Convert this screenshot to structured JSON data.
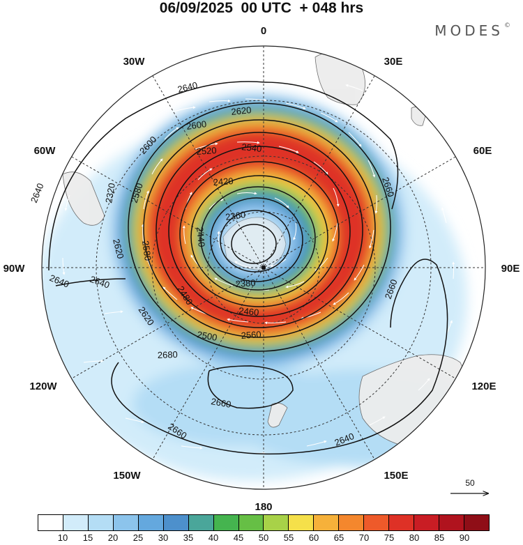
{
  "title": "06/09/2025  00 UTC  + 048 hrs",
  "brand": "MODES",
  "brand_mark": "©",
  "longitude_labels": {
    "lon0": "0",
    "lon30e": "30E",
    "lon60e": "60E",
    "lon90e": "90E",
    "lon120e": "120E",
    "lon150e": "150E",
    "lon180": "180",
    "lon150w": "150W",
    "lon120w": "120W",
    "lon90w": "90W",
    "lon60w": "60W",
    "lon30w": "30W"
  },
  "contour_labels": [
    "2640",
    "2620",
    "2600",
    "2540",
    "2520",
    "2580",
    "2600",
    "2420",
    "2320",
    "2640",
    "2620",
    "2580",
    "2360",
    "2440",
    "2380",
    "2480",
    "2460",
    "2500",
    "2560",
    "2620",
    "2640",
    "2640",
    "2660",
    "2660",
    "2680",
    "2660",
    "2660",
    "2640"
  ],
  "reference_vector": {
    "label": "50"
  },
  "colorbar": {
    "colors": [
      "#ffffff",
      "#d2ecfa",
      "#b4ddf5",
      "#8cc4ec",
      "#64a8de",
      "#4d90cc",
      "#4aa69a",
      "#45b44f",
      "#66bf45",
      "#a8d248",
      "#f5e04a",
      "#f6b13a",
      "#f4872d",
      "#ee5a2a",
      "#de3126",
      "#c91d24",
      "#b0131e",
      "#8f0e17"
    ],
    "ticks": [
      "10",
      "15",
      "20",
      "25",
      "30",
      "35",
      "40",
      "45",
      "50",
      "55",
      "60",
      "65",
      "70",
      "75",
      "80",
      "85",
      "90"
    ]
  }
}
